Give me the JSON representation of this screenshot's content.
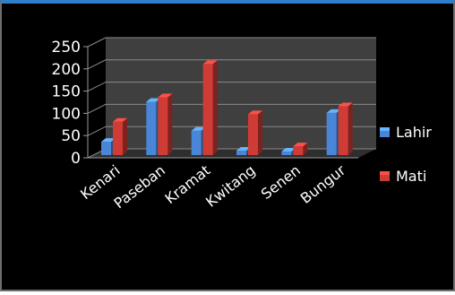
{
  "chart_data": {
    "type": "bar",
    "title": "",
    "xlabel": "",
    "ylabel": "",
    "categories": [
      "Kenari",
      "Paseban",
      "Kramat",
      "Kwitang",
      "Senen",
      "Bungur"
    ],
    "series": [
      {
        "name": "Lahir",
        "color": "#4a86d8",
        "values": [
          30,
          120,
          55,
          10,
          8,
          95
        ]
      },
      {
        "name": "Mati",
        "color": "#cf3b35",
        "values": [
          75,
          130,
          205,
          92,
          20,
          110
        ]
      }
    ],
    "ylim": [
      0,
      250
    ],
    "yticks": [
      "0",
      "50",
      "100",
      "150",
      "200",
      "250"
    ],
    "grid": true,
    "legend_position": "right",
    "style": "3d-clustered-column"
  }
}
